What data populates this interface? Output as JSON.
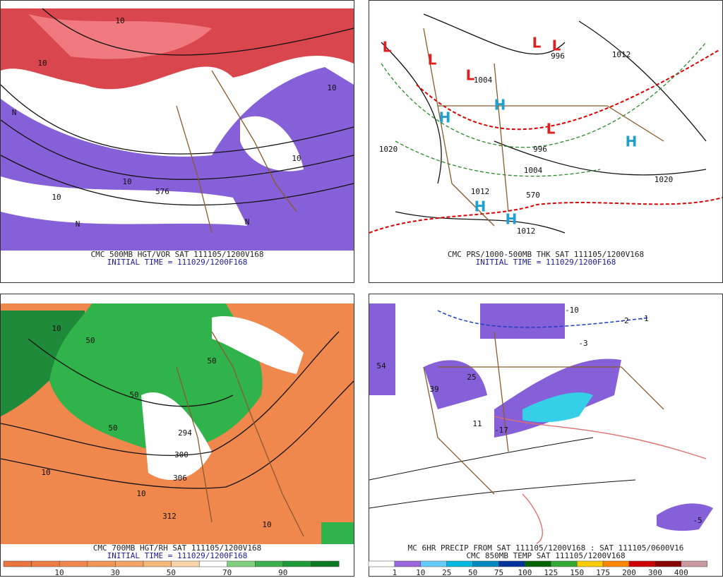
{
  "panels": [
    {
      "caption": "CMC 500MB HGT/VOR SAT 111105/1200V168",
      "initial": "INITIAL TIME = 111029/1200F168",
      "labels": [
        "10",
        "10",
        "10",
        "10",
        "576",
        "10",
        "10",
        "N",
        "N",
        "N"
      ]
    },
    {
      "caption": "CMC PRS/1000-500MB THK SAT 111105/1200V168",
      "initial": "INITIAL TIME = 111029/1200F168",
      "labels": [
        "L",
        "L",
        "L",
        "L",
        "L",
        "L",
        "H",
        "H",
        "H",
        "H",
        "H",
        "1020",
        "1012",
        "1004",
        "996",
        "1020",
        "1012",
        "1012",
        "570",
        "996",
        "1004"
      ]
    },
    {
      "caption": "CMC 700MB HGT/RH SAT 111105/1200V168",
      "initial": "INITIAL TIME = 111029/1200F168",
      "labels": [
        "10",
        "50",
        "50",
        "50",
        "306",
        "300",
        "294",
        "312",
        "10",
        "10",
        "10",
        "50"
      ],
      "colorbar": [
        "10",
        "30",
        "50",
        "70",
        "90"
      ]
    },
    {
      "caption": "MC 6HR PRECIP FROM SAT 111105/1200V168 : SAT 111105/0600V16",
      "initial": "CMC 850MB TEMP SAT 111105/1200V168",
      "labels": [
        "-10",
        "-2",
        "-1",
        "-3",
        "54",
        "39",
        "25",
        "11",
        "-17",
        "-5"
      ],
      "colorbar": [
        "1",
        "10",
        "25",
        "50",
        "75",
        "100",
        "125",
        "150",
        "175",
        "200",
        "300",
        "400"
      ]
    }
  ]
}
